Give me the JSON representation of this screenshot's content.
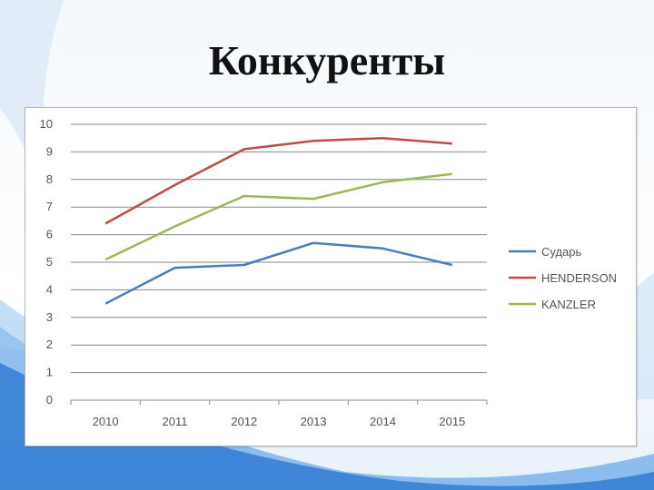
{
  "slide": {
    "title": "Конкуренты"
  },
  "chart_data": {
    "type": "line",
    "categories": [
      "2010",
      "2011",
      "2012",
      "2013",
      "2014",
      "2015"
    ],
    "ylim": [
      0,
      10
    ],
    "yticks": [
      "0",
      "1",
      "2",
      "3",
      "4",
      "5",
      "6",
      "7",
      "8",
      "9",
      "10"
    ],
    "grid": true,
    "legend_position": "right",
    "series": [
      {
        "name": "Сударь",
        "color": "#4a7ebb",
        "values": [
          3.5,
          4.8,
          4.9,
          5.7,
          5.5,
          4.9
        ]
      },
      {
        "name": "HENDERSON",
        "color": "#be4b48",
        "values": [
          6.4,
          7.8,
          9.1,
          9.4,
          9.5,
          9.3
        ]
      },
      {
        "name": "KANZLER",
        "color": "#98b954",
        "values": [
          5.1,
          6.3,
          7.4,
          7.3,
          7.9,
          8.2
        ]
      }
    ]
  }
}
